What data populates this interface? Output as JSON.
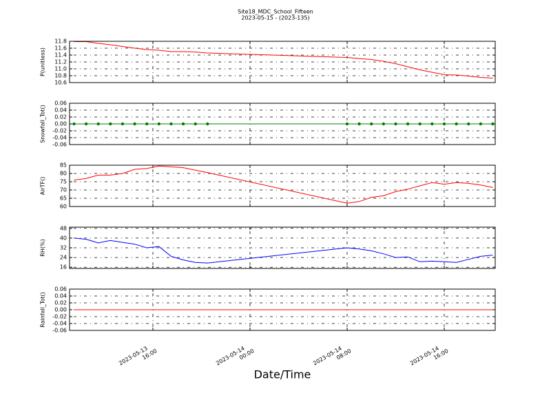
{
  "figure": {
    "title": "Site18_MDC_School_Fifteen",
    "subtitle": "2023-05-15 - (2023-135)",
    "xlabel": "Date/Time",
    "xlim": [
      "2023-05-13 09:08",
      "2023-05-14 20:12"
    ],
    "xticks": [
      "2023-05-13 16:00",
      "2023-05-14 00:00",
      "2023-05-14 08:00",
      "2023-05-14 16:00"
    ],
    "x": [
      "2023-05-13 09:30",
      "2023-05-13 10:30",
      "2023-05-13 11:30",
      "2023-05-13 12:30",
      "2023-05-13 13:30",
      "2023-05-13 14:30",
      "2023-05-13 15:30",
      "2023-05-13 16:30",
      "2023-05-13 17:30",
      "2023-05-13 18:30",
      "2023-05-13 19:30",
      "2023-05-13 20:30",
      "2023-05-14 08:00",
      "2023-05-14 09:00",
      "2023-05-14 10:00",
      "2023-05-14 11:00",
      "2023-05-14 12:00",
      "2023-05-14 13:00",
      "2023-05-14 14:00",
      "2023-05-14 15:00",
      "2023-05-14 16:00",
      "2023-05-14 17:00",
      "2023-05-14 18:00",
      "2023-05-14 19:00",
      "2023-05-14 20:00"
    ]
  },
  "chart_data": [
    {
      "type": "line",
      "ylabel": "P(unitless)",
      "color": "#ff0000",
      "grid": true,
      "ylim": [
        10.6,
        11.8
      ],
      "yticks": [
        10.6,
        10.8,
        {
          "value": 11,
          "label": "11.0"
        },
        11.2,
        11.4,
        11.6,
        11.8
      ],
      "values": [
        11.79,
        11.79,
        11.74,
        11.7,
        11.65,
        11.6,
        11.56,
        11.54,
        11.5,
        11.5,
        11.49,
        11.46,
        11.33,
        11.3,
        11.27,
        11.22,
        11.15,
        11.06,
        10.97,
        10.9,
        10.83,
        10.82,
        10.79,
        10.75,
        10.73
      ]
    },
    {
      "type": "line",
      "markers": true,
      "ylabel": "Snowfall_Tot()",
      "color": "#008000",
      "grid": true,
      "ylim": [
        -0.06,
        0.06
      ],
      "yticks": [
        -0.06,
        -0.04,
        -0.02,
        {
          "value": 0,
          "label": "0.00"
        },
        0.02,
        0.04,
        0.06
      ],
      "values": [
        0,
        0,
        0,
        0,
        0,
        0,
        0,
        0,
        0,
        0,
        0,
        0,
        0,
        0,
        0,
        0,
        0,
        0,
        0,
        0,
        0,
        0,
        0,
        0,
        0
      ]
    },
    {
      "type": "line",
      "ylabel": "AirTF()",
      "color": "#ff0000",
      "grid": true,
      "ylim": [
        60,
        85
      ],
      "yticks": [
        60,
        65,
        70,
        75,
        80,
        85
      ],
      "values": [
        76,
        77,
        79,
        79,
        80,
        82.5,
        83,
        84.5,
        84,
        83.5,
        82,
        80.5,
        62,
        63,
        65.5,
        66.5,
        69,
        70.5,
        72.5,
        74.5,
        73.5,
        74.5,
        74,
        73,
        71.5
      ]
    },
    {
      "type": "line",
      "ylabel": "RH(%)",
      "color": "#0000ff",
      "grid": true,
      "ylim": [
        15,
        49
      ],
      "yticks": [
        16,
        24,
        32,
        40,
        48
      ],
      "values": [
        40,
        39,
        36,
        38,
        36.5,
        35,
        32,
        33,
        25,
        22,
        20,
        19.5,
        32,
        31,
        29.5,
        27,
        24,
        24.5,
        20.5,
        21,
        20.5,
        20,
        22.5,
        25,
        26
      ]
    },
    {
      "type": "line",
      "ylabel": "Rainfall_Tot()",
      "color": "#ff0000",
      "grid": true,
      "ylim": [
        -0.06,
        0.06
      ],
      "yticks": [
        -0.06,
        -0.04,
        -0.02,
        {
          "value": 0,
          "label": "0.00"
        },
        0.02,
        0.04,
        0.06
      ],
      "values": [
        0,
        0,
        0,
        0,
        0,
        0,
        0,
        0,
        0,
        0,
        0,
        0,
        0,
        0,
        0,
        0,
        0,
        0,
        0,
        0,
        0,
        0,
        0,
        0,
        0
      ]
    }
  ]
}
